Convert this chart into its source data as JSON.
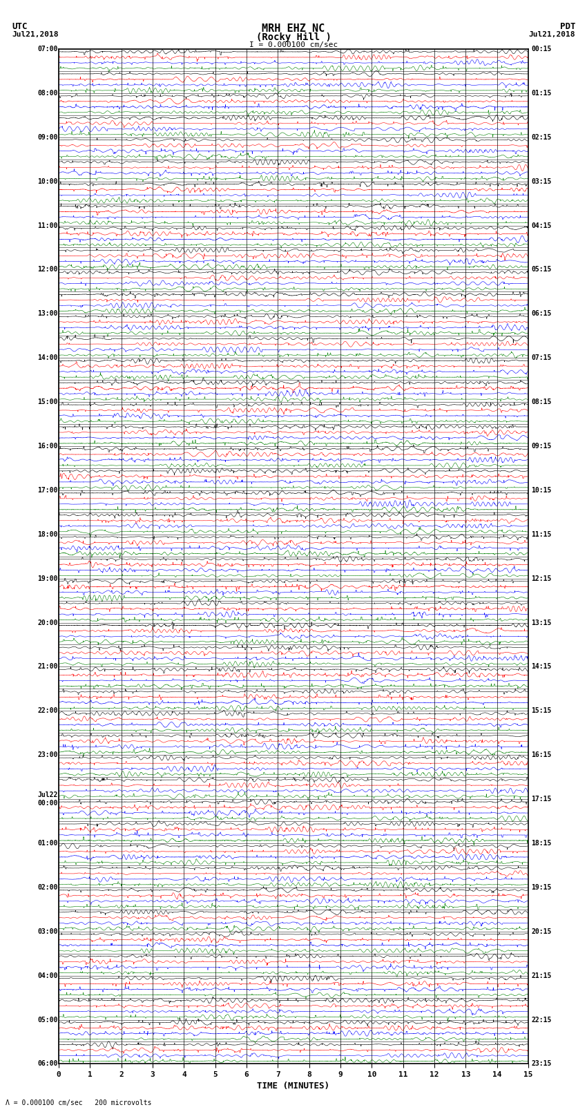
{
  "title_line1": "MRH EHZ NC",
  "title_line2": "(Rocky Hill )",
  "scale_label": "I = 0.000100 cm/sec",
  "left_date": "Jul21,2018",
  "right_date": "Jul21,2018",
  "left_tz": "UTC",
  "right_tz": "PDT",
  "bottom_label": "TIME (MINUTES)",
  "scale_note": "= 0.000100 cm/sec",
  "microvolts_note": "200 microvolts",
  "left_times": [
    "07:00",
    "08:00",
    "09:00",
    "10:00",
    "11:00",
    "12:00",
    "13:00",
    "14:00",
    "15:00",
    "16:00",
    "17:00",
    "18:00",
    "19:00",
    "20:00",
    "21:00",
    "22:00",
    "23:00",
    "Jul22\n00:00",
    "01:00",
    "02:00",
    "03:00",
    "04:00",
    "05:00",
    "06:00"
  ],
  "right_times": [
    "00:15",
    "01:15",
    "02:15",
    "03:15",
    "04:15",
    "05:15",
    "06:15",
    "07:15",
    "08:15",
    "09:15",
    "10:15",
    "11:15",
    "12:15",
    "13:15",
    "14:15",
    "15:15",
    "16:15",
    "17:15",
    "18:15",
    "19:15",
    "20:15",
    "21:15",
    "22:15",
    "23:15"
  ],
  "n_rows": 46,
  "colors": [
    "black",
    "red",
    "blue",
    "green"
  ],
  "bg_color": "#ffffff",
  "n_points": 3000,
  "seed": 42,
  "x_ticks": [
    0,
    1,
    2,
    3,
    4,
    5,
    6,
    7,
    8,
    9,
    10,
    11,
    12,
    13,
    14,
    15
  ]
}
